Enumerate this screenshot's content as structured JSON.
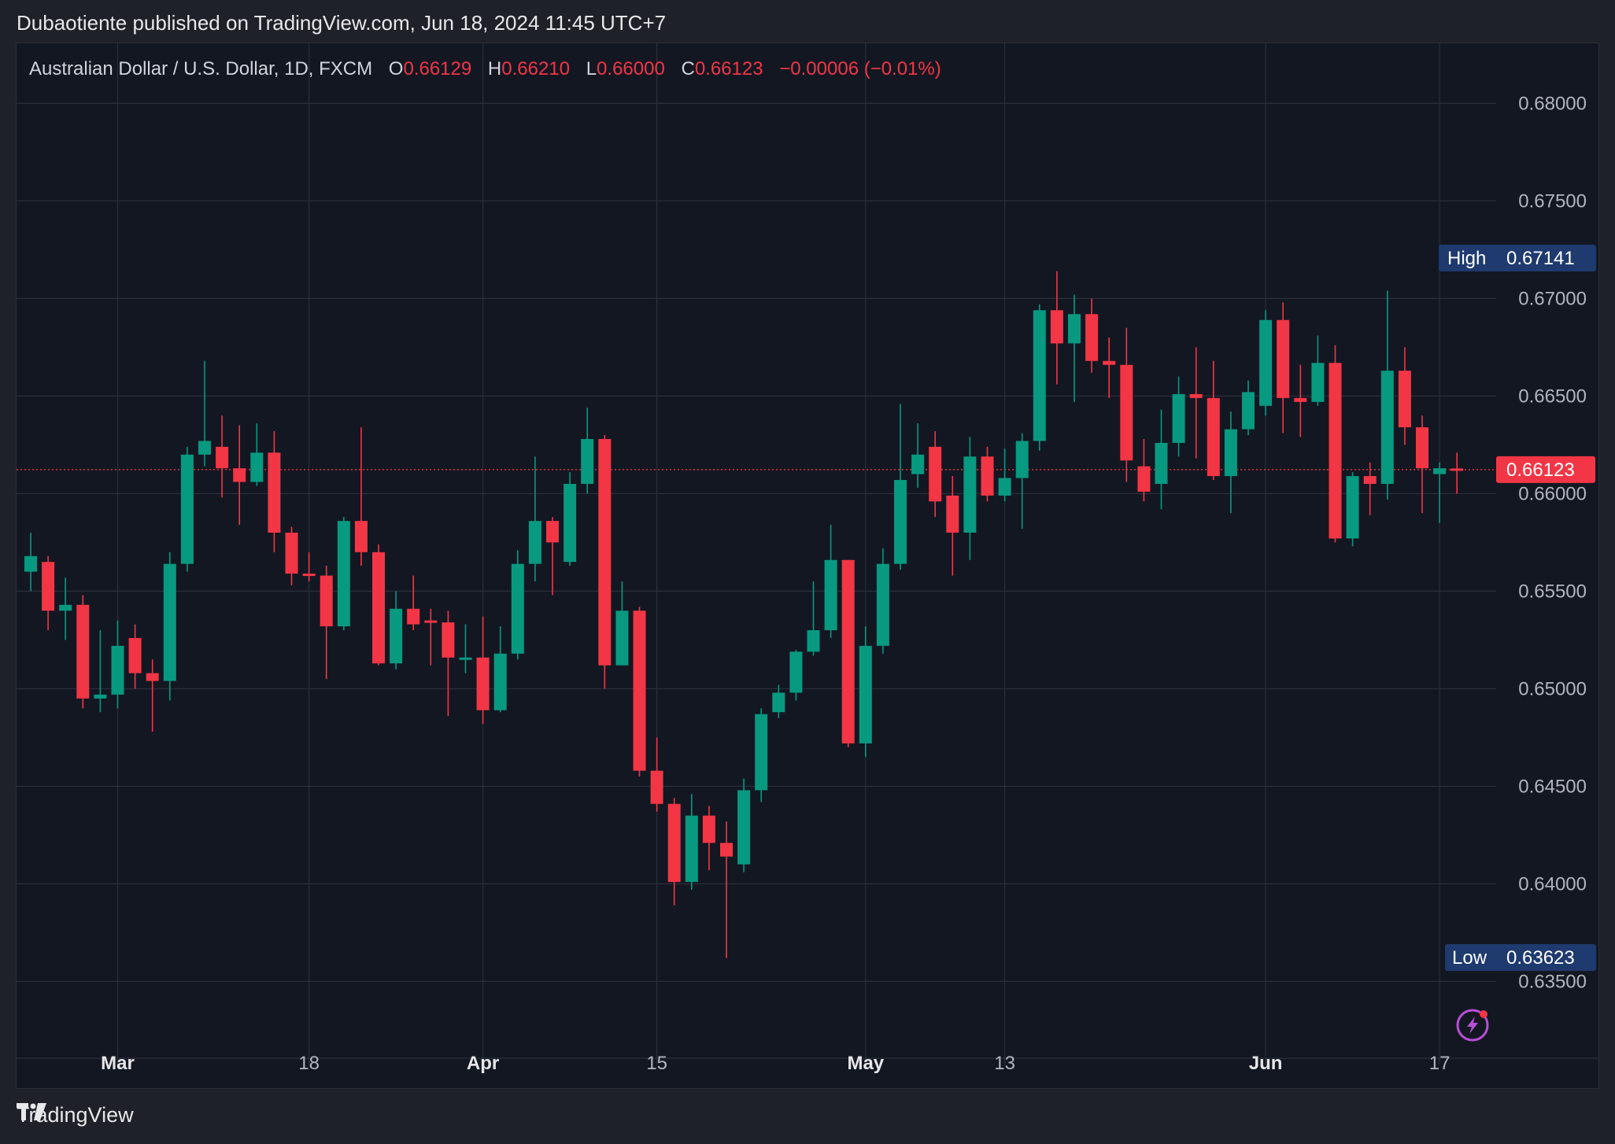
{
  "header": {
    "published_line": "Dubaotiente published on TradingView.com, Jun 18, 2024 11:45 UTC+7"
  },
  "legend": {
    "symbol": "Australian Dollar / U.S. Dollar, 1D, FXCM",
    "o_label": "O",
    "o_value": "0.66129",
    "h_label": "H",
    "h_value": "0.66210",
    "l_label": "L",
    "l_value": "0.66000",
    "c_label": "C",
    "c_value": "0.66123",
    "change": "−0.00006 (−0.01%)"
  },
  "badges": {
    "high_label": "High",
    "high_value": "0.67141",
    "low_label": "Low",
    "low_value": "0.63623",
    "last_value": "0.66123"
  },
  "footer": {
    "brand": "TradingView"
  },
  "colors": {
    "up": "#089981",
    "down": "#f23645",
    "background": "#131722",
    "grid": "#2a2e39",
    "axis_text": "#b2b5be",
    "badge": "#1e3a6e"
  },
  "icons": [
    "tradingview-logo-icon",
    "lightning-icon"
  ],
  "chart_data": {
    "type": "candlestick",
    "symbol": "AUD/USD",
    "timeframe": "1D",
    "ylim": [
      0.63,
      0.685
    ],
    "y_ticks": [
      "0.68000",
      "0.67500",
      "0.67000",
      "0.66500",
      "0.66000",
      "0.65500",
      "0.65000",
      "0.64500",
      "0.64000",
      "0.63500"
    ],
    "y_tick_values": [
      0.68,
      0.675,
      0.67,
      0.665,
      0.66,
      0.655,
      0.65,
      0.645,
      0.64,
      0.635
    ],
    "x_ticks": [
      {
        "label": "Mar",
        "index": 5,
        "bold": true
      },
      {
        "label": "18",
        "index": 16,
        "bold": false
      },
      {
        "label": "Apr",
        "index": 26,
        "bold": true
      },
      {
        "label": "15",
        "index": 36,
        "bold": false
      },
      {
        "label": "May",
        "index": 48,
        "bold": true
      },
      {
        "label": "13",
        "index": 56,
        "bold": false
      },
      {
        "label": "Jun",
        "index": 71,
        "bold": true
      },
      {
        "label": "17",
        "index": 81,
        "bold": false
      }
    ],
    "last_price": 0.66123,
    "candles": [
      [
        0.656,
        0.6568,
        0.655,
        0.658
      ],
      [
        0.6565,
        0.654,
        0.653,
        0.6568
      ],
      [
        0.654,
        0.6543,
        0.6525,
        0.6557
      ],
      [
        0.6543,
        0.6495,
        0.649,
        0.6548
      ],
      [
        0.6495,
        0.6497,
        0.6488,
        0.653
      ],
      [
        0.6497,
        0.6522,
        0.649,
        0.6535
      ],
      [
        0.6526,
        0.6508,
        0.65,
        0.6533
      ],
      [
        0.6508,
        0.6504,
        0.6478,
        0.6515
      ],
      [
        0.6504,
        0.6564,
        0.6494,
        0.657
      ],
      [
        0.6564,
        0.662,
        0.656,
        0.6624
      ],
      [
        0.662,
        0.6627,
        0.6614,
        0.6668
      ],
      [
        0.6624,
        0.6613,
        0.6598,
        0.664
      ],
      [
        0.6613,
        0.6606,
        0.6584,
        0.6635
      ],
      [
        0.6606,
        0.6621,
        0.6604,
        0.6636
      ],
      [
        0.6621,
        0.658,
        0.657,
        0.6632
      ],
      [
        0.658,
        0.6559,
        0.6553,
        0.6583
      ],
      [
        0.6559,
        0.6558,
        0.6555,
        0.657
      ],
      [
        0.6558,
        0.6532,
        0.6505,
        0.6563
      ],
      [
        0.6532,
        0.6586,
        0.653,
        0.6588
      ],
      [
        0.6586,
        0.657,
        0.6563,
        0.6634
      ],
      [
        0.657,
        0.6513,
        0.6512,
        0.6574
      ],
      [
        0.6513,
        0.6541,
        0.651,
        0.655
      ],
      [
        0.6541,
        0.6533,
        0.653,
        0.6558
      ],
      [
        0.6535,
        0.6534,
        0.6512,
        0.6541
      ],
      [
        0.6534,
        0.6516,
        0.6486,
        0.654
      ],
      [
        0.6516,
        0.6516,
        0.6508,
        0.6533
      ],
      [
        0.6516,
        0.6489,
        0.6482,
        0.6537
      ],
      [
        0.6489,
        0.6518,
        0.6488,
        0.6532
      ],
      [
        0.6518,
        0.6564,
        0.6515,
        0.6571
      ],
      [
        0.6564,
        0.6586,
        0.6555,
        0.6619
      ],
      [
        0.6586,
        0.6575,
        0.6548,
        0.6588
      ],
      [
        0.6565,
        0.6605,
        0.6563,
        0.6611
      ],
      [
        0.6605,
        0.6628,
        0.66,
        0.6644
      ],
      [
        0.6628,
        0.6512,
        0.65,
        0.663
      ],
      [
        0.6512,
        0.654,
        0.6512,
        0.6555
      ],
      [
        0.654,
        0.6458,
        0.6455,
        0.6542
      ],
      [
        0.6458,
        0.6441,
        0.6437,
        0.6475
      ],
      [
        0.6441,
        0.6401,
        0.6389,
        0.6444
      ],
      [
        0.6401,
        0.6435,
        0.6397,
        0.6446
      ],
      [
        0.6435,
        0.6421,
        0.6407,
        0.644
      ],
      [
        0.6421,
        0.6414,
        0.6362,
        0.6432
      ],
      [
        0.641,
        0.6448,
        0.6406,
        0.6454
      ],
      [
        0.6448,
        0.6487,
        0.6442,
        0.649
      ],
      [
        0.6488,
        0.6498,
        0.6485,
        0.6502
      ],
      [
        0.6498,
        0.6519,
        0.6494,
        0.652
      ],
      [
        0.6519,
        0.653,
        0.6517,
        0.6555
      ],
      [
        0.653,
        0.6566,
        0.6526,
        0.6584
      ],
      [
        0.6566,
        0.6472,
        0.647,
        0.6566
      ],
      [
        0.6472,
        0.6522,
        0.6465,
        0.6532
      ],
      [
        0.6522,
        0.6564,
        0.6518,
        0.6572
      ],
      [
        0.6564,
        0.6607,
        0.6561,
        0.6646
      ],
      [
        0.661,
        0.662,
        0.6603,
        0.6636
      ],
      [
        0.6624,
        0.6596,
        0.6588,
        0.6632
      ],
      [
        0.6599,
        0.658,
        0.6558,
        0.6609
      ],
      [
        0.658,
        0.6619,
        0.6566,
        0.6629
      ],
      [
        0.6619,
        0.6599,
        0.6596,
        0.6624
      ],
      [
        0.6599,
        0.6608,
        0.6596,
        0.6623
      ],
      [
        0.6608,
        0.6627,
        0.6582,
        0.6631
      ],
      [
        0.6627,
        0.6694,
        0.6622,
        0.6697
      ],
      [
        0.6694,
        0.6677,
        0.6656,
        0.6714
      ],
      [
        0.6677,
        0.6692,
        0.6647,
        0.6702
      ],
      [
        0.6692,
        0.6668,
        0.6662,
        0.67
      ],
      [
        0.6668,
        0.6666,
        0.6649,
        0.668
      ],
      [
        0.6666,
        0.6617,
        0.6606,
        0.6685
      ],
      [
        0.6614,
        0.6601,
        0.6596,
        0.6628
      ],
      [
        0.6605,
        0.6626,
        0.6592,
        0.6643
      ],
      [
        0.6626,
        0.6651,
        0.6619,
        0.666
      ],
      [
        0.6651,
        0.6649,
        0.6618,
        0.6675
      ],
      [
        0.6649,
        0.6609,
        0.6607,
        0.6668
      ],
      [
        0.6609,
        0.6633,
        0.659,
        0.6642
      ],
      [
        0.6633,
        0.6652,
        0.663,
        0.6658
      ],
      [
        0.6645,
        0.6689,
        0.664,
        0.6694
      ],
      [
        0.6689,
        0.6649,
        0.6631,
        0.6698
      ],
      [
        0.6649,
        0.6647,
        0.6629,
        0.6666
      ],
      [
        0.6647,
        0.6667,
        0.6645,
        0.6681
      ],
      [
        0.6667,
        0.6577,
        0.6575,
        0.6676
      ],
      [
        0.6577,
        0.6609,
        0.6573,
        0.6611
      ],
      [
        0.6609,
        0.6605,
        0.6589,
        0.6616
      ],
      [
        0.6605,
        0.6663,
        0.6597,
        0.6704
      ],
      [
        0.6663,
        0.6634,
        0.6625,
        0.6675
      ],
      [
        0.6634,
        0.6613,
        0.659,
        0.664
      ],
      [
        0.661,
        0.6613,
        0.6585,
        0.6616
      ],
      [
        0.66129,
        0.66123,
        0.66,
        0.6621
      ]
    ]
  }
}
